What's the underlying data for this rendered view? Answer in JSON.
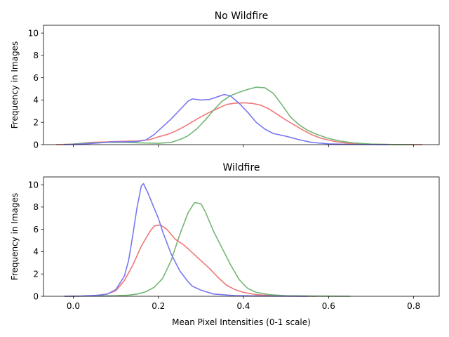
{
  "chart_data": [
    {
      "type": "line",
      "title": "No Wildfire",
      "xlabel": "",
      "ylabel": "Frequency in Images",
      "xlim": [
        -0.07,
        0.86
      ],
      "ylim": [
        0,
        10.7
      ],
      "x_ticks": [
        0.0,
        0.2,
        0.4,
        0.6,
        0.8
      ],
      "x_tick_labels": [],
      "y_ticks": [
        0,
        2,
        4,
        6,
        8,
        10
      ],
      "y_tick_labels": [
        "0",
        "2",
        "4",
        "6",
        "8",
        "10"
      ],
      "grid": false,
      "series": [
        {
          "color": "#f07878",
          "points": [
            [
              -0.04,
              0.0
            ],
            [
              0.0,
              0.05
            ],
            [
              0.04,
              0.2
            ],
            [
              0.08,
              0.25
            ],
            [
              0.12,
              0.3
            ],
            [
              0.15,
              0.33
            ],
            [
              0.18,
              0.45
            ],
            [
              0.2,
              0.7
            ],
            [
              0.22,
              0.9
            ],
            [
              0.24,
              1.2
            ],
            [
              0.26,
              1.6
            ],
            [
              0.28,
              2.05
            ],
            [
              0.3,
              2.5
            ],
            [
              0.32,
              2.9
            ],
            [
              0.34,
              3.25
            ],
            [
              0.36,
              3.6
            ],
            [
              0.38,
              3.72
            ],
            [
              0.4,
              3.75
            ],
            [
              0.42,
              3.7
            ],
            [
              0.44,
              3.55
            ],
            [
              0.46,
              3.2
            ],
            [
              0.48,
              2.7
            ],
            [
              0.5,
              2.2
            ],
            [
              0.52,
              1.75
            ],
            [
              0.54,
              1.3
            ],
            [
              0.56,
              0.9
            ],
            [
              0.58,
              0.6
            ],
            [
              0.6,
              0.4
            ],
            [
              0.62,
              0.25
            ],
            [
              0.65,
              0.1
            ],
            [
              0.7,
              0.03
            ],
            [
              0.75,
              0.01
            ],
            [
              0.82,
              0.0
            ]
          ]
        },
        {
          "color": "#74b574",
          "points": [
            [
              -0.02,
              0.0
            ],
            [
              0.0,
              0.05
            ],
            [
              0.04,
              0.15
            ],
            [
              0.08,
              0.2
            ],
            [
              0.12,
              0.2
            ],
            [
              0.16,
              0.15
            ],
            [
              0.2,
              0.12
            ],
            [
              0.23,
              0.2
            ],
            [
              0.25,
              0.45
            ],
            [
              0.27,
              0.8
            ],
            [
              0.29,
              1.4
            ],
            [
              0.31,
              2.2
            ],
            [
              0.33,
              3.1
            ],
            [
              0.35,
              3.9
            ],
            [
              0.37,
              4.4
            ],
            [
              0.39,
              4.7
            ],
            [
              0.41,
              4.95
            ],
            [
              0.43,
              5.15
            ],
            [
              0.45,
              5.1
            ],
            [
              0.47,
              4.6
            ],
            [
              0.49,
              3.6
            ],
            [
              0.51,
              2.5
            ],
            [
              0.53,
              1.8
            ],
            [
              0.55,
              1.3
            ],
            [
              0.57,
              0.95
            ],
            [
              0.6,
              0.55
            ],
            [
              0.63,
              0.3
            ],
            [
              0.66,
              0.15
            ],
            [
              0.7,
              0.05
            ],
            [
              0.75,
              0.01
            ],
            [
              0.8,
              0.0
            ]
          ]
        },
        {
          "color": "#7878f0",
          "points": [
            [
              -0.02,
              0.0
            ],
            [
              0.02,
              0.05
            ],
            [
              0.06,
              0.15
            ],
            [
              0.09,
              0.25
            ],
            [
              0.12,
              0.25
            ],
            [
              0.15,
              0.28
            ],
            [
              0.17,
              0.4
            ],
            [
              0.19,
              0.9
            ],
            [
              0.21,
              1.6
            ],
            [
              0.23,
              2.3
            ],
            [
              0.25,
              3.1
            ],
            [
              0.27,
              3.9
            ],
            [
              0.28,
              4.1
            ],
            [
              0.3,
              4.0
            ],
            [
              0.32,
              4.05
            ],
            [
              0.34,
              4.3
            ],
            [
              0.355,
              4.5
            ],
            [
              0.37,
              4.35
            ],
            [
              0.39,
              3.7
            ],
            [
              0.41,
              2.9
            ],
            [
              0.43,
              2.0
            ],
            [
              0.45,
              1.4
            ],
            [
              0.47,
              1.0
            ],
            [
              0.5,
              0.75
            ],
            [
              0.53,
              0.45
            ],
            [
              0.56,
              0.2
            ],
            [
              0.6,
              0.07
            ],
            [
              0.65,
              0.02
            ],
            [
              0.74,
              0.0
            ]
          ]
        }
      ]
    },
    {
      "type": "line",
      "title": "Wildfire",
      "xlabel": "Mean Pixel Intensities (0-1 scale)",
      "ylabel": "Frequency in Images",
      "xlim": [
        -0.07,
        0.86
      ],
      "ylim": [
        0,
        10.7
      ],
      "x_ticks": [
        0.0,
        0.2,
        0.4,
        0.6,
        0.8
      ],
      "x_tick_labels": [
        "0.0",
        "0.2",
        "0.4",
        "0.6",
        "0.8"
      ],
      "y_ticks": [
        0,
        2,
        4,
        6,
        8,
        10
      ],
      "y_tick_labels": [
        "0",
        "2",
        "4",
        "6",
        "8",
        "10"
      ],
      "grid": false,
      "series": [
        {
          "color": "#f07878",
          "points": [
            [
              -0.02,
              0.0
            ],
            [
              0.02,
              0.02
            ],
            [
              0.05,
              0.05
            ],
            [
              0.08,
              0.2
            ],
            [
              0.1,
              0.5
            ],
            [
              0.12,
              1.4
            ],
            [
              0.14,
              2.8
            ],
            [
              0.16,
              4.5
            ],
            [
              0.18,
              5.8
            ],
            [
              0.19,
              6.3
            ],
            [
              0.205,
              6.4
            ],
            [
              0.22,
              6.0
            ],
            [
              0.24,
              5.1
            ],
            [
              0.26,
              4.6
            ],
            [
              0.28,
              3.9
            ],
            [
              0.3,
              3.2
            ],
            [
              0.32,
              2.5
            ],
            [
              0.34,
              1.7
            ],
            [
              0.36,
              1.0
            ],
            [
              0.38,
              0.6
            ],
            [
              0.4,
              0.35
            ],
            [
              0.43,
              0.15
            ],
            [
              0.47,
              0.05
            ],
            [
              0.52,
              0.02
            ],
            [
              0.57,
              0.0
            ]
          ]
        },
        {
          "color": "#74b574",
          "points": [
            [
              -0.02,
              0.0
            ],
            [
              0.05,
              0.02
            ],
            [
              0.1,
              0.05
            ],
            [
              0.13,
              0.1
            ],
            [
              0.15,
              0.2
            ],
            [
              0.17,
              0.4
            ],
            [
              0.19,
              0.8
            ],
            [
              0.21,
              1.6
            ],
            [
              0.23,
              3.2
            ],
            [
              0.25,
              5.5
            ],
            [
              0.27,
              7.5
            ],
            [
              0.285,
              8.4
            ],
            [
              0.3,
              8.3
            ],
            [
              0.31,
              7.6
            ],
            [
              0.33,
              5.8
            ],
            [
              0.35,
              4.3
            ],
            [
              0.37,
              2.8
            ],
            [
              0.39,
              1.5
            ],
            [
              0.41,
              0.7
            ],
            [
              0.43,
              0.35
            ],
            [
              0.46,
              0.15
            ],
            [
              0.5,
              0.05
            ],
            [
              0.56,
              0.02
            ],
            [
              0.65,
              0.0
            ]
          ]
        },
        {
          "color": "#7878f0",
          "points": [
            [
              -0.02,
              0.0
            ],
            [
              0.02,
              0.02
            ],
            [
              0.06,
              0.1
            ],
            [
              0.08,
              0.2
            ],
            [
              0.1,
              0.6
            ],
            [
              0.12,
              1.8
            ],
            [
              0.13,
              3.2
            ],
            [
              0.14,
              5.5
            ],
            [
              0.15,
              8.0
            ],
            [
              0.16,
              9.9
            ],
            [
              0.165,
              10.1
            ],
            [
              0.175,
              9.3
            ],
            [
              0.19,
              7.9
            ],
            [
              0.2,
              7.0
            ],
            [
              0.21,
              5.8
            ],
            [
              0.23,
              3.8
            ],
            [
              0.25,
              2.3
            ],
            [
              0.27,
              1.3
            ],
            [
              0.28,
              0.9
            ],
            [
              0.3,
              0.55
            ],
            [
              0.33,
              0.2
            ],
            [
              0.38,
              0.06
            ],
            [
              0.45,
              0.02
            ],
            [
              0.55,
              0.0
            ]
          ]
        }
      ]
    }
  ]
}
